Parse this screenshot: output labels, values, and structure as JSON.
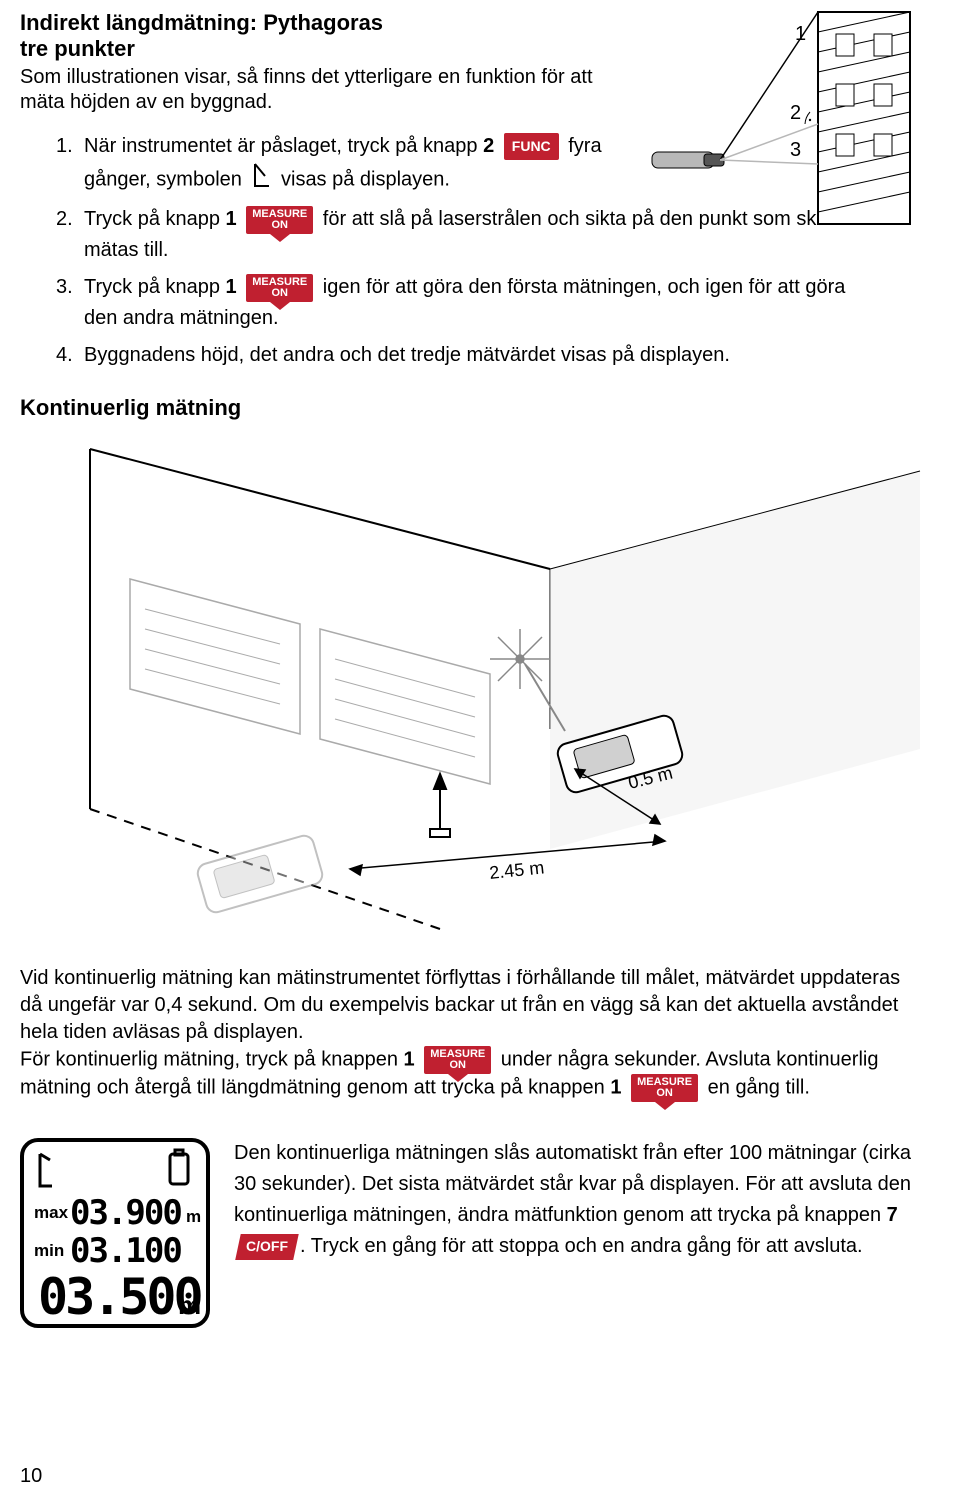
{
  "colors": {
    "accent": "#c02030",
    "text": "#000000",
    "bg": "#ffffff",
    "gray": "#b8b8b8",
    "shadow": "#d0d0d0"
  },
  "heading": {
    "line1": "Indirekt längdmätning: Pythagoras",
    "line2": "tre punkter"
  },
  "intro": "Som illustrationen visar, så finns det ytterligare en funktion för att mäta höjden av en byggnad.",
  "steps": [
    {
      "num": "1.",
      "parts": [
        {
          "t": "text",
          "v": "När instrumentet är påslaget, tryck på knapp "
        },
        {
          "t": "bold",
          "v": "2"
        },
        {
          "t": "func"
        },
        {
          "t": "text",
          "v": " fyra"
        },
        {
          "t": "br"
        },
        {
          "t": "text",
          "v": "gånger, symbolen "
        },
        {
          "t": "angle"
        },
        {
          "t": "text",
          "v": " visas på displayen."
        }
      ]
    },
    {
      "num": "2.",
      "parts": [
        {
          "t": "text",
          "v": "Tryck på knapp "
        },
        {
          "t": "bold",
          "v": "1"
        },
        {
          "t": "measure"
        },
        {
          "t": "text",
          "v": " för att slå på laserstrålen och sikta på den punkt som ska mätas till."
        }
      ]
    },
    {
      "num": "3.",
      "parts": [
        {
          "t": "text",
          "v": "Tryck på knapp "
        },
        {
          "t": "bold",
          "v": "1"
        },
        {
          "t": "measure"
        },
        {
          "t": "text",
          "v": " igen för att göra den första mätningen, och igen för att göra den andra mätningen."
        }
      ]
    },
    {
      "num": "4.",
      "parts": [
        {
          "t": "text",
          "v": "Byggnadens höjd, det andra och det tredje mätvärdet visas på displayen."
        }
      ]
    }
  ],
  "diagram_labels": {
    "l1": "1",
    "l2": "2",
    "l3": "3"
  },
  "section2_title": "Kontinuerlig mätning",
  "illus_labels": {
    "near": "0.5 m",
    "far": "2.45 m"
  },
  "para1_parts": [
    "Vid kontinuerlig mätning kan mätinstrumentet förflyttas i förhållande till målet, mätvärdet uppdateras då ungefär var 0,4 sekund. Om du exempelvis backar ut från en vägg så kan det aktuella avståndet hela tiden avläsas på displayen.",
    "För kontinuerlig mätning, tryck på knappen ",
    "1",
    " under några sekunder. Avsluta kontinuerlig mätning och återgå till längdmätning genom att trycka på knappen ",
    "1",
    " en gång till."
  ],
  "bottom_para_parts": [
    "Den kontinuerliga mätningen slås automatiskt från efter 100 mätningar (cirka 30 sekunder). Det sista mätvärdet står kvar på displayen. För att avsluta den kontinuerliga mätningen, ändra mätfunktion genom att trycka på knappen ",
    "7",
    ". Tryck en gång för att stoppa och en andra gång för att avsluta."
  ],
  "lcd": {
    "max_label": "max",
    "max_val": "03.900",
    "min_label": "min",
    "min_val": "03.100",
    "main_val": "03.500",
    "unit_small": "m",
    "unit_big": "m"
  },
  "buttons": {
    "func": "FUNC",
    "measure_l1": "MEASURE",
    "measure_l2": "ON",
    "coff": "C/OFF"
  },
  "page_number": "10"
}
